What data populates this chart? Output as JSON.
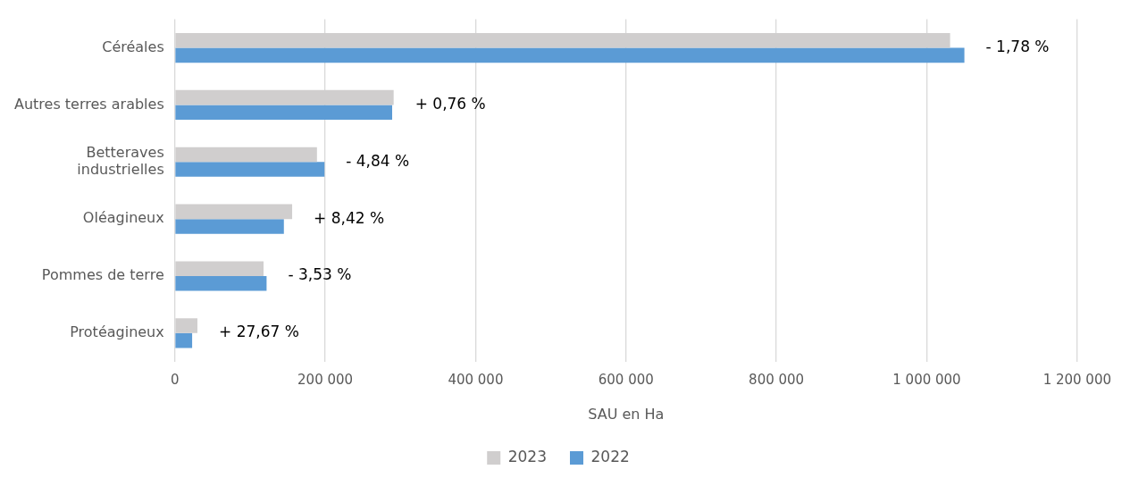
{
  "chart_data": {
    "type": "bar",
    "orientation": "horizontal",
    "xlabel": "SAU en Ha",
    "categories": [
      "Céréales",
      "Autres terres arables",
      "Betteraves\nindustrielles",
      "Oléagineux",
      "Pommes de terre",
      "Protéagineux"
    ],
    "series": [
      {
        "name": "2023",
        "color": "#d0cece",
        "values": [
          1031000,
          291000,
          189000,
          156000,
          118000,
          30000
        ]
      },
      {
        "name": "2022",
        "color": "#5b9bd5",
        "values": [
          1050000,
          289000,
          199000,
          145000,
          122000,
          23000
        ]
      }
    ],
    "xlim": [
      0,
      1200000
    ],
    "xticks": [
      {
        "value": 0,
        "label": "0"
      },
      {
        "value": 200000,
        "label": "200 000"
      },
      {
        "value": 400000,
        "label": "400 000"
      },
      {
        "value": 600000,
        "label": "600 000"
      },
      {
        "value": 800000,
        "label": "800 000"
      },
      {
        "value": 1000000,
        "label": "1 000 000"
      },
      {
        "value": 1200000,
        "label": "1 200 000"
      }
    ],
    "grid": "x",
    "legend": "bottom",
    "annotations": [
      {
        "text": "- 1,78 %",
        "x": 1050000,
        "y": "Céréales"
      },
      {
        "text": "+ 0,76 %",
        "x": 291000,
        "y": "Autres terres arables"
      },
      {
        "text": "- 4,84 %",
        "x": 199000,
        "y": "Betteraves\nindustrielles"
      },
      {
        "text": "+ 8,42 %",
        "x": 156000,
        "y": "Oléagineux"
      },
      {
        "text": "- 3,53 %",
        "x": 122000,
        "y": "Pommes de terre"
      },
      {
        "text": "+ 27,67 %",
        "x": 30000,
        "y": "Protéagineux"
      }
    ]
  }
}
